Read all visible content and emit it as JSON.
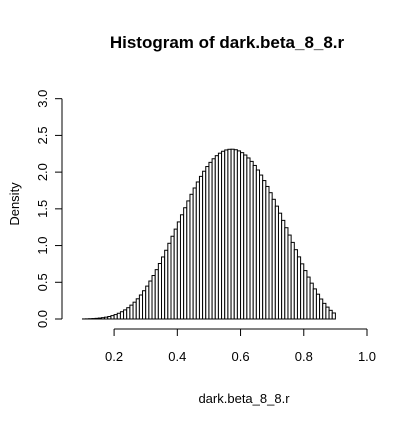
{
  "chart_data": {
    "type": "bar",
    "title": "Histogram of dark.beta_8_8.r",
    "xlabel": "dark.beta_8_8.r",
    "ylabel": "Density",
    "xlim": [
      0.07,
      1.0
    ],
    "ylim": [
      0,
      3.2
    ],
    "x_ticks": [
      "0.2",
      "0.4",
      "0.6",
      "0.8",
      "1.0"
    ],
    "y_ticks": [
      "0.0",
      "0.5",
      "1.0",
      "1.5",
      "2.0",
      "2.5",
      "3.0"
    ],
    "bin_width": 0.01,
    "bin_start": 0.1,
    "bin_end": 0.9,
    "values": [
      0.001,
      0.002,
      0.004,
      0.006,
      0.009,
      0.013,
      0.018,
      0.025,
      0.034,
      0.046,
      0.06,
      0.078,
      0.099,
      0.124,
      0.154,
      0.189,
      0.229,
      0.275,
      0.327,
      0.385,
      0.448,
      0.517,
      0.592,
      0.672,
      0.756,
      0.845,
      0.936,
      1.031,
      1.127,
      1.224,
      1.322,
      1.419,
      1.515,
      1.608,
      1.698,
      1.784,
      1.866,
      1.942,
      2.012,
      2.076,
      2.133,
      2.182,
      2.224,
      2.258,
      2.284,
      2.302,
      2.311,
      2.312,
      2.305,
      2.289,
      2.265,
      2.233,
      2.193,
      2.146,
      2.091,
      2.029,
      1.96,
      1.885,
      1.805,
      1.72,
      1.63,
      1.537,
      1.441,
      1.343,
      1.243,
      1.143,
      1.043,
      0.944,
      0.846,
      0.751,
      0.659,
      0.571,
      0.488,
      0.41,
      0.338,
      0.272,
      0.213,
      0.162,
      0.118,
      0.082
    ]
  }
}
